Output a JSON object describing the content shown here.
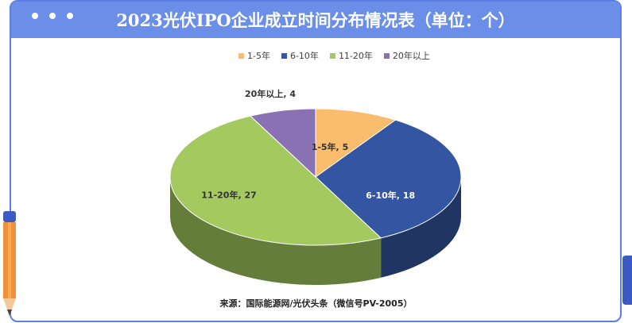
{
  "header": {
    "title": "2023光伏IPO企业成立时间分布情况表（单位：个）"
  },
  "colors": {
    "header_bg": "#6b8ee8",
    "frame": "#5b7ee5"
  },
  "chart_data": {
    "type": "pie",
    "title": "2023光伏IPO企业成立时间分布情况表（单位：个）",
    "categories": [
      "1-5年",
      "6-10年",
      "11-20年",
      "20年以上"
    ],
    "values": [
      5,
      18,
      27,
      4
    ],
    "colors": [
      "#f9bd6d",
      "#3456a2",
      "#a3c95f",
      "#8a71b4"
    ],
    "data_labels": [
      "1-5年, 5",
      "6-10年, 18",
      "11-20年, 27",
      "20年以上, 4"
    ],
    "legend_position": "top",
    "style": "3d"
  },
  "legend": {
    "items": [
      {
        "label": "1-5年",
        "color": "#f9bd6d"
      },
      {
        "label": "6-10年",
        "color": "#3456a2"
      },
      {
        "label": "11-20年",
        "color": "#a3c95f"
      },
      {
        "label": "20年以上",
        "color": "#8a71b4"
      }
    ]
  },
  "footer": {
    "source": "来源：国际能源网/光伏头条（微信号PV-2005）"
  }
}
